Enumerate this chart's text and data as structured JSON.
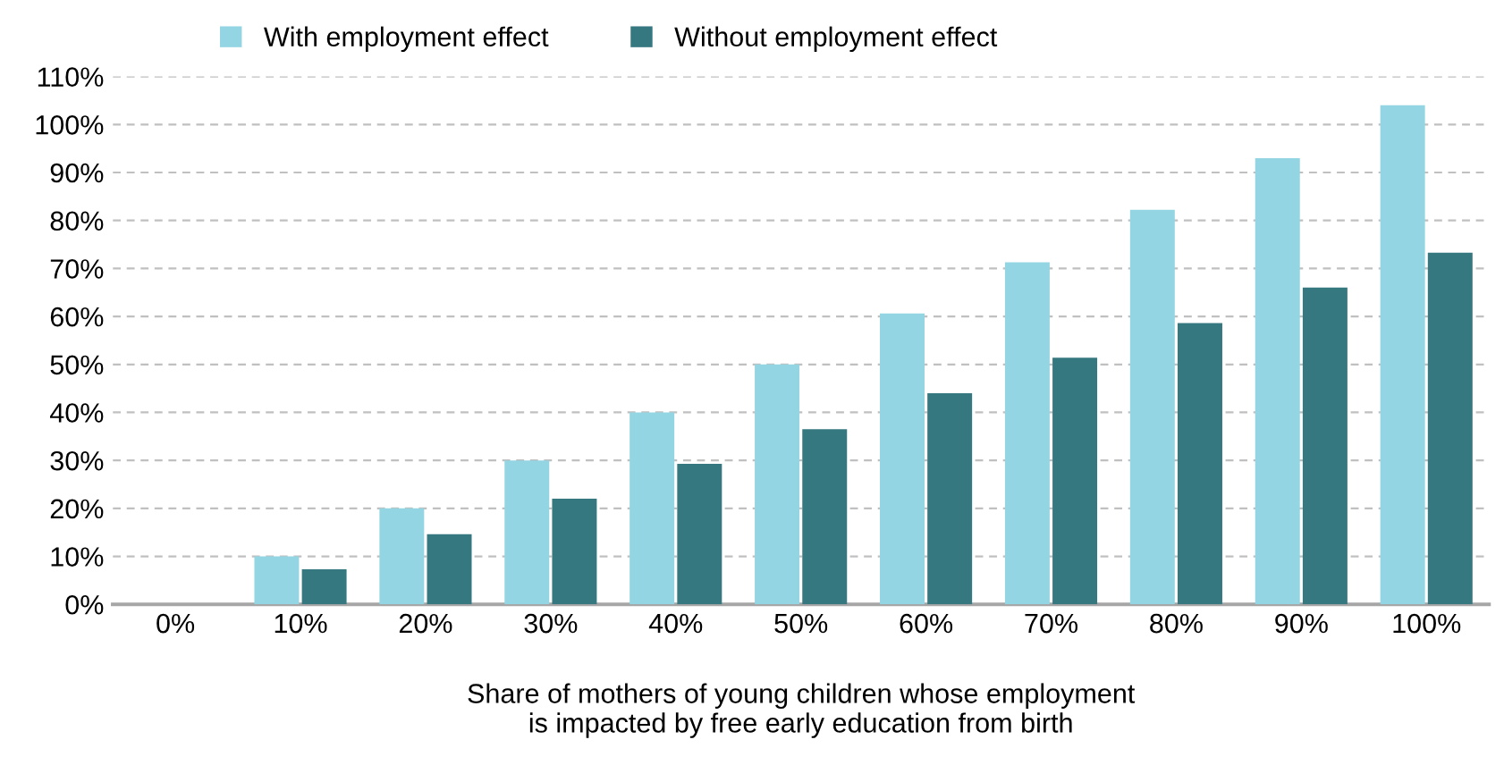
{
  "chart_data": {
    "type": "bar",
    "xlabel": "Share of mothers of young children whose employment\nis impacted by free early education from birth",
    "categories": [
      "0%",
      "10%",
      "20%",
      "30%",
      "40%",
      "50%",
      "60%",
      "70%",
      "80%",
      "90%",
      "100%"
    ],
    "series": [
      {
        "name": "With employment effect",
        "color": "#93d5e2",
        "values": [
          0,
          10,
          20,
          30,
          40,
          50,
          60.6,
          71.3,
          82.2,
          93,
          104
        ]
      },
      {
        "name": "Without employment effect",
        "color": "#367880",
        "values": [
          0,
          7.3,
          14.6,
          22,
          29.3,
          36.5,
          44,
          51.4,
          58.6,
          66,
          73.3
        ]
      }
    ],
    "ylim": [
      0,
      110
    ],
    "yticks": [
      {
        "value": 0,
        "label": "0%"
      },
      {
        "value": 10,
        "label": "10%"
      },
      {
        "value": 20,
        "label": "20%"
      },
      {
        "value": 30,
        "label": "30%"
      },
      {
        "value": 40,
        "label": "40%"
      },
      {
        "value": 50,
        "label": "50%"
      },
      {
        "value": 60,
        "label": "60%"
      },
      {
        "value": 70,
        "label": "70%"
      },
      {
        "value": 80,
        "label": "80%"
      },
      {
        "value": 90,
        "label": "90%"
      },
      {
        "value": 100,
        "label": "100%"
      },
      {
        "value": 110,
        "label": "110%"
      }
    ],
    "grid": "y",
    "legend": "top"
  }
}
